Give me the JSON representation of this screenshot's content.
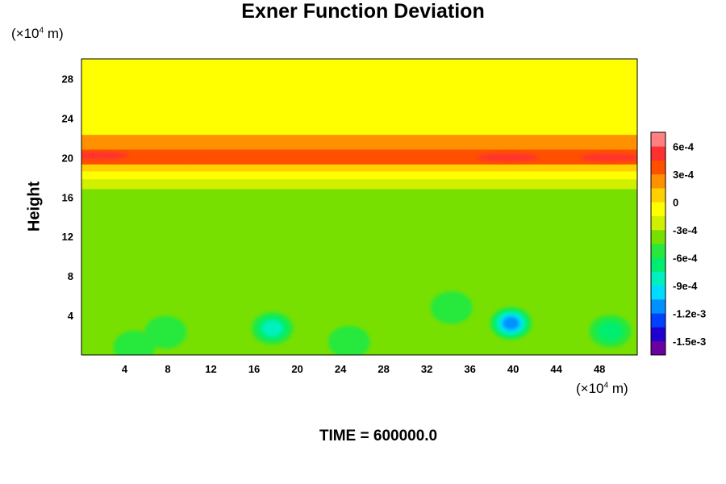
{
  "chart_data": {
    "type": "heatmap",
    "title": "Exner Function Deviation",
    "ylabel": "Height",
    "y_unit_prefix": "(×10",
    "y_unit_exp": "4",
    "y_unit_suffix": " m)",
    "x_unit_prefix": "(×10",
    "x_unit_exp": "4",
    "x_unit_suffix": " m)",
    "footer": "TIME = 600000.0",
    "xlim": [
      0,
      51.5
    ],
    "ylim": [
      0,
      30
    ],
    "x_ticks": [
      4,
      8,
      12,
      16,
      20,
      24,
      28,
      32,
      36,
      40,
      44,
      48
    ],
    "y_ticks": [
      4,
      8,
      12,
      16,
      20,
      24,
      28
    ],
    "colorbar": {
      "range": [
        -0.00165,
        0.00075
      ],
      "ticks": [
        {
          "value": 0.0006,
          "label": "6e-4"
        },
        {
          "value": 0.0003,
          "label": "3e-4"
        },
        {
          "value": 0,
          "label": "0"
        },
        {
          "value": -0.0003,
          "label": "-3e-4"
        },
        {
          "value": -0.0006,
          "label": "-6e-4"
        },
        {
          "value": -0.0009,
          "label": "-9e-4"
        },
        {
          "value": -0.0012,
          "label": "-1.2e-3"
        },
        {
          "value": -0.0015,
          "label": "-1.5e-3"
        }
      ],
      "colors": [
        "#6a00a0",
        "#2000d0",
        "#0040ff",
        "#0090ff",
        "#00dcff",
        "#00f0c0",
        "#00ee70",
        "#28e83c",
        "#78e000",
        "#d0f000",
        "#ffff00",
        "#ffd000",
        "#ff9000",
        "#ff5000",
        "#ff3030",
        "#ff8080"
      ]
    },
    "bands": [
      {
        "y_min": 22.3,
        "y_max": 30,
        "value": 0
      },
      {
        "y_min": 21.5,
        "y_max": 22.3,
        "value": 0.0002
      },
      {
        "y_min": 20.8,
        "y_max": 21.5,
        "value": 0.0003
      },
      {
        "y_min": 19.3,
        "y_max": 20.8,
        "value": 0.00045
      },
      {
        "y_min": 18.6,
        "y_max": 19.3,
        "value": 0.0001
      },
      {
        "y_min": 17.8,
        "y_max": 18.6,
        "value": -0.0001
      },
      {
        "y_min": 16.8,
        "y_max": 17.8,
        "value": -0.0003
      },
      {
        "y_min": 0,
        "y_max": 16.8,
        "value": -0.00045
      }
    ],
    "hotspots": [
      {
        "x": 1.5,
        "y": 20.2,
        "value": 0.0006
      },
      {
        "x": 49,
        "y": 20.0,
        "value": 0.0006
      },
      {
        "x": 39.5,
        "y": 20.0,
        "value": 0.0005
      },
      {
        "x": 10,
        "y": 20.1,
        "value": 0.0004
      }
    ],
    "minima": [
      {
        "x": 17.7,
        "y": 2.7,
        "value": -0.0009
      },
      {
        "x": 39.8,
        "y": 3.2,
        "value": -0.0012
      },
      {
        "x": 49.0,
        "y": 2.4,
        "value": -0.0008
      },
      {
        "x": 7.8,
        "y": 2.3,
        "value": -0.0007
      },
      {
        "x": 34.3,
        "y": 4.8,
        "value": -0.0006
      },
      {
        "x": 24.8,
        "y": 1.3,
        "value": -0.0006
      },
      {
        "x": 4.9,
        "y": 0.8,
        "value": -0.0006
      }
    ]
  }
}
